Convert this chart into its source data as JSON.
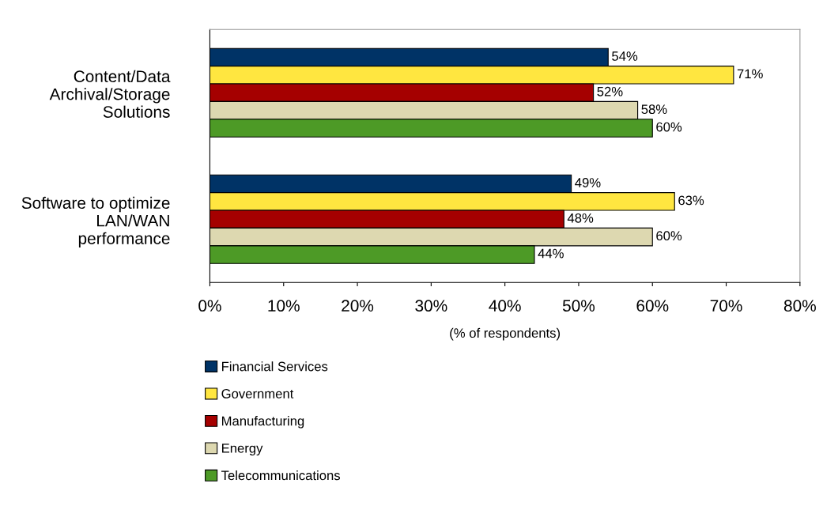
{
  "chart_data": {
    "type": "bar",
    "orientation": "horizontal",
    "xlabel": "(% of respondents)",
    "categories": [
      "Content/Data\nArchival/Storage\nSolutions",
      "Software to optimize\nLAN/WAN\nperformance"
    ],
    "series": [
      {
        "name": "Financial Services",
        "color": "#003366",
        "values": [
          54,
          49
        ],
        "value_labels": [
          "54%",
          "49%"
        ]
      },
      {
        "name": "Government",
        "color": "#ffe640",
        "values": [
          71,
          63
        ],
        "value_labels": [
          "71%",
          "63%"
        ]
      },
      {
        "name": "Manufacturing",
        "color": "#a50000",
        "values": [
          52,
          48
        ],
        "value_labels": [
          "52%",
          "48%"
        ]
      },
      {
        "name": "Energy",
        "color": "#ddd8b0",
        "values": [
          58,
          60
        ],
        "value_labels": [
          "58%",
          "60%"
        ]
      },
      {
        "name": "Telecommunications",
        "color": "#4d9a26",
        "values": [
          60,
          44
        ],
        "value_labels": [
          "60%",
          "44%"
        ]
      }
    ],
    "xlim": [
      0,
      80
    ],
    "xticks": [
      {
        "value": 0,
        "label": "0%"
      },
      {
        "value": 10,
        "label": "10%"
      },
      {
        "value": 20,
        "label": "20%"
      },
      {
        "value": 30,
        "label": "30%"
      },
      {
        "value": 40,
        "label": "40%"
      },
      {
        "value": 50,
        "label": "50%"
      },
      {
        "value": 60,
        "label": "60%"
      },
      {
        "value": 70,
        "label": "70%"
      },
      {
        "value": 80,
        "label": "80%"
      }
    ],
    "grid": false,
    "legend": "bottom"
  }
}
